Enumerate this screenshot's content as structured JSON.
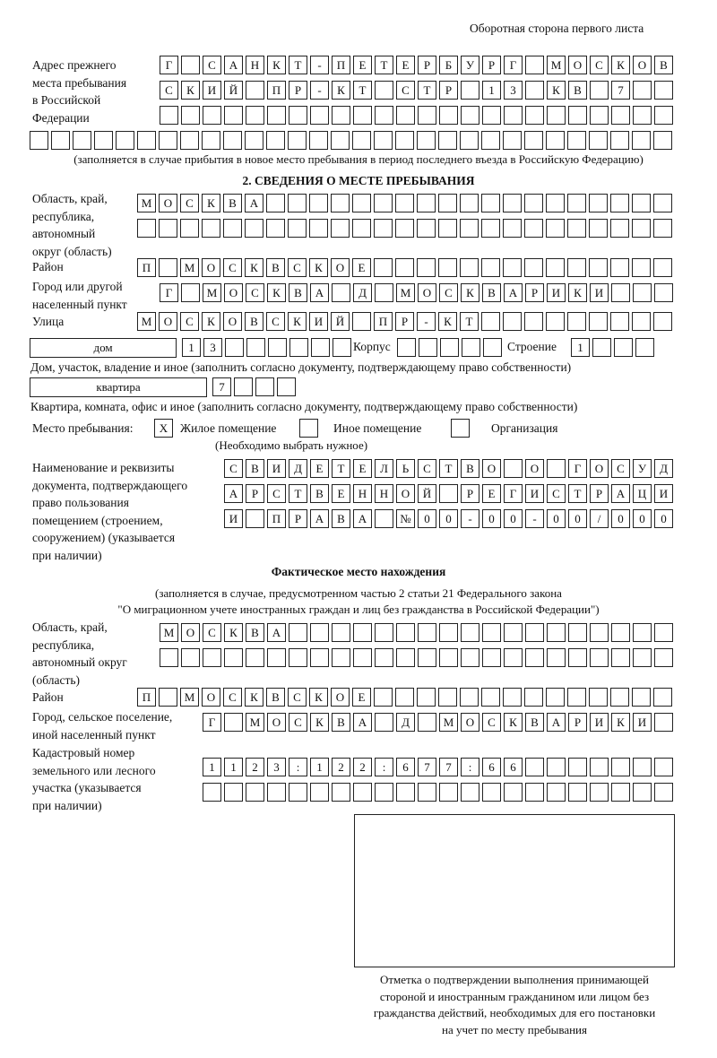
{
  "header": "Оборотная сторона первого листа",
  "previous_address": {
    "label": [
      "Адрес прежнего",
      "места пребывания",
      "в Российской",
      "Федерации"
    ],
    "rows": [
      "Г САНКТ-ПЕТЕРБУРГ МОСКОВ",
      "СКИЙ ПР-КТ СТР 13 КВ 7",
      "",
      ""
    ],
    "note": "(заполняется в случае прибытия в новое место пребывания в период последнего въезда в Российскую Федерацию)"
  },
  "section2": {
    "title": "2. СВЕДЕНИЯ О МЕСТЕ ПРЕБЫВАНИЯ",
    "region_label": [
      "Область, край,",
      "республика,",
      "автономный",
      "округ (область)"
    ],
    "region_rows": [
      "МОСКВА",
      ""
    ],
    "district_label": "Район",
    "district": "П МОСКВСКОЕ",
    "city_label": [
      "Город или другой",
      "населенный пункт"
    ],
    "city": "Г МОСКВА Д МОСКВАРИКИ",
    "street_label": "Улица",
    "street": "МОСКОВСКИЙ ПР-КТ",
    "house_type": "дом",
    "house_number": "13",
    "building_label": "Корпус",
    "building": "",
    "structure_label": "Строение",
    "structure": "1",
    "house_note": "Дом, участок, владение и иное (заполнить согласно документу, подтверждающему право собственности)",
    "apartment_type": "квартира",
    "apartment_number": "7",
    "apartment_note": "Квартира, комната, офис и иное (заполнить согласно документу, подтверждающему право собственности)",
    "stay_place_label": "Место пребывания:",
    "options": [
      {
        "label": "Жилое помещение",
        "mark": "X"
      },
      {
        "label": "Иное помещение",
        "mark": ""
      },
      {
        "label": "Организация",
        "mark": ""
      }
    ],
    "options_note": "(Необходимо выбрать нужное)",
    "document_label": [
      "Наименование и реквизиты",
      "документа, подтверждающего",
      "право пользования",
      "помещением (строением,",
      "сооружением) (указывается",
      "при наличии)"
    ],
    "document_rows": [
      "СВИДЕТЕЛЬСТВО О ГОСУД",
      "АРСТВЕННОЙ РЕГИСТРАЦИ",
      "И ПРАВА №00-00-00/000"
    ]
  },
  "actual": {
    "title": "Фактическое место нахождения",
    "subtitle": [
      "(заполняется в случае, предусмотренном частью 2 статьи 21 Федерального закона",
      "\"О миграционном учете иностранных граждан и лиц без гражданства в Российской Федерации\")"
    ],
    "region_label": [
      "Область, край,",
      "республика,",
      "автономный округ",
      "(область)"
    ],
    "region_rows": [
      "МОСКВА",
      ""
    ],
    "district_label": "Район",
    "district": "П МОСКВСКОЕ",
    "city_label": [
      "Город, сельское поселение,",
      "иной населенный пункт"
    ],
    "city": "Г МОСКВА Д МОСКВАРИКИ",
    "cadastral_label": [
      "Кадастровый номер",
      "земельного или лесного",
      "участка (указывается",
      "при наличии)"
    ],
    "cadastral_rows": [
      "1123:122:677:66",
      ""
    ]
  },
  "confirmation_caption": [
    "Отметка о подтверждении выполнения принимающей",
    "стороной и иностранным гражданином или лицом без",
    "гражданства действий, необходимых для его постановки",
    "на учет по месту пребывания"
  ]
}
